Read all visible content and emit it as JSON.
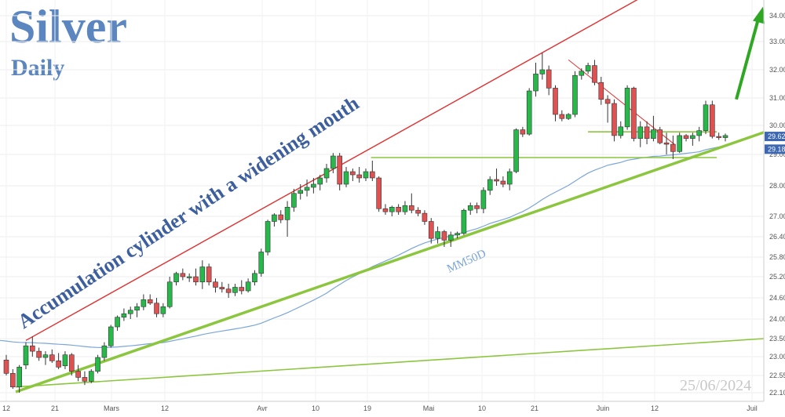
{
  "title": "Silver",
  "subtitle": "Daily",
  "date_stamp": "25/06/2024",
  "annotation": "Accumulation cylinder with a widening mouth",
  "ma_label": "MM50D",
  "colors": {
    "up": "#27b84a",
    "down": "#e05252",
    "channel_red": "#e03030",
    "support_green": "#8cc63f",
    "ma_line": "#7aa6d9",
    "title_blue": "#5b86c0",
    "price_badge": "#3d67b0"
  },
  "chart_data": {
    "type": "candlestick",
    "y_axis": {
      "side": "right",
      "ticks": [
        "34.00",
        "33.00",
        "32.00",
        "31.00",
        "30.00",
        "29.00",
        "28.00",
        "27.00",
        "26.40",
        "25.80",
        "25.20",
        "24.60",
        "24.00",
        "23.50",
        "23.00",
        "22.55",
        "22.10"
      ],
      "price_badges": [
        "29.62",
        "29.18"
      ]
    },
    "x_axis": {
      "ticks": [
        "12",
        "21",
        "Mars",
        "12",
        "Avr",
        "10",
        "19",
        "Mai",
        "10",
        "21",
        "Juin",
        "12",
        "Juil"
      ]
    },
    "candles": [
      [
        22.92,
        23.05,
        22.55,
        22.6
      ],
      [
        22.6,
        22.7,
        22.2,
        22.25
      ],
      [
        22.25,
        22.8,
        22.1,
        22.75
      ],
      [
        22.8,
        23.4,
        22.7,
        23.3
      ],
      [
        23.3,
        23.55,
        23.0,
        23.15
      ],
      [
        23.15,
        23.25,
        22.9,
        22.98
      ],
      [
        22.98,
        23.15,
        22.8,
        23.05
      ],
      [
        23.05,
        23.2,
        22.85,
        22.9
      ],
      [
        22.9,
        23.1,
        22.7,
        22.75
      ],
      [
        22.78,
        23.15,
        22.7,
        23.05
      ],
      [
        23.05,
        23.1,
        22.55,
        22.65
      ],
      [
        22.65,
        22.8,
        22.4,
        22.5
      ],
      [
        22.5,
        22.65,
        22.3,
        22.4
      ],
      [
        22.4,
        22.7,
        22.35,
        22.65
      ],
      [
        22.65,
        23.05,
        22.6,
        22.98
      ],
      [
        22.98,
        23.4,
        22.9,
        23.3
      ],
      [
        23.3,
        23.85,
        23.25,
        23.8
      ],
      [
        23.8,
        24.1,
        23.7,
        24.05
      ],
      [
        24.05,
        24.3,
        23.95,
        24.15
      ],
      [
        24.15,
        24.35,
        24.0,
        24.25
      ],
      [
        24.25,
        24.45,
        24.05,
        24.35
      ],
      [
        24.35,
        24.7,
        24.25,
        24.55
      ],
      [
        24.55,
        24.7,
        24.4,
        24.45
      ],
      [
        24.45,
        24.6,
        24.05,
        24.15
      ],
      [
        24.15,
        24.45,
        24.05,
        24.35
      ],
      [
        24.35,
        25.2,
        24.3,
        25.05
      ],
      [
        25.05,
        25.35,
        24.95,
        25.3
      ],
      [
        25.3,
        25.45,
        25.1,
        25.2
      ],
      [
        25.2,
        25.3,
        25.05,
        25.2
      ],
      [
        25.2,
        25.45,
        24.95,
        25.05
      ],
      [
        25.05,
        25.7,
        24.85,
        25.5
      ],
      [
        25.5,
        25.6,
        24.95,
        25.05
      ],
      [
        25.05,
        25.15,
        24.75,
        24.9
      ],
      [
        24.9,
        25.05,
        24.75,
        24.85
      ],
      [
        24.85,
        25.0,
        24.6,
        24.75
      ],
      [
        24.75,
        25.0,
        24.65,
        24.9
      ],
      [
        24.9,
        25.1,
        24.7,
        24.8
      ],
      [
        24.8,
        25.15,
        24.75,
        25.05
      ],
      [
        25.05,
        25.4,
        24.95,
        25.3
      ],
      [
        25.3,
        26.05,
        25.2,
        25.95
      ],
      [
        25.95,
        26.9,
        25.85,
        26.85
      ],
      [
        26.85,
        27.1,
        26.7,
        27.05
      ],
      [
        27.05,
        27.2,
        26.8,
        26.9
      ],
      [
        26.9,
        27.5,
        26.4,
        27.3
      ],
      [
        27.3,
        27.9,
        27.15,
        27.75
      ],
      [
        27.75,
        28.05,
        27.55,
        27.85
      ],
      [
        27.85,
        28.2,
        27.65,
        27.95
      ],
      [
        27.95,
        28.25,
        27.75,
        28.05
      ],
      [
        28.05,
        28.35,
        27.85,
        28.25
      ],
      [
        28.25,
        28.7,
        28.1,
        28.55
      ],
      [
        28.55,
        29.05,
        28.4,
        28.95
      ],
      [
        28.95,
        29.05,
        27.85,
        28.05
      ],
      [
        28.05,
        28.6,
        27.95,
        28.45
      ],
      [
        28.45,
        28.55,
        28.15,
        28.35
      ],
      [
        28.35,
        28.6,
        28.1,
        28.25
      ],
      [
        28.25,
        28.55,
        28.15,
        28.45
      ],
      [
        28.45,
        28.8,
        28.15,
        28.25
      ],
      [
        28.25,
        28.3,
        27.15,
        27.25
      ],
      [
        27.25,
        27.4,
        27.05,
        27.15
      ],
      [
        27.15,
        27.35,
        27.0,
        27.3
      ],
      [
        27.3,
        27.4,
        27.05,
        27.15
      ],
      [
        27.15,
        27.5,
        27.05,
        27.35
      ],
      [
        27.35,
        27.75,
        27.1,
        27.2
      ],
      [
        27.2,
        27.3,
        27.0,
        27.1
      ],
      [
        27.1,
        27.2,
        26.75,
        26.85
      ],
      [
        26.85,
        26.95,
        26.2,
        26.35
      ],
      [
        26.35,
        26.7,
        26.2,
        26.55
      ],
      [
        26.55,
        26.6,
        26.1,
        26.3
      ],
      [
        26.3,
        26.55,
        26.1,
        26.45
      ],
      [
        26.45,
        26.55,
        26.35,
        26.5
      ],
      [
        26.5,
        27.25,
        26.45,
        27.2
      ],
      [
        27.2,
        27.45,
        27.05,
        27.35
      ],
      [
        27.35,
        27.45,
        27.1,
        27.25
      ],
      [
        27.25,
        27.95,
        27.1,
        27.85
      ],
      [
        27.85,
        28.3,
        27.7,
        28.2
      ],
      [
        28.2,
        28.55,
        28.0,
        28.15
      ],
      [
        28.15,
        28.3,
        27.95,
        28.05
      ],
      [
        28.05,
        28.55,
        27.85,
        28.45
      ],
      [
        28.45,
        29.9,
        28.4,
        29.85
      ],
      [
        29.85,
        29.95,
        29.6,
        29.7
      ],
      [
        29.7,
        31.35,
        29.65,
        31.25
      ],
      [
        31.25,
        32.25,
        31.05,
        31.85
      ],
      [
        31.85,
        32.6,
        31.65,
        32.0
      ],
      [
        32.0,
        32.15,
        31.1,
        31.35
      ],
      [
        31.35,
        31.45,
        30.15,
        30.4
      ],
      [
        30.4,
        30.55,
        30.15,
        30.25
      ],
      [
        30.25,
        30.45,
        30.2,
        30.4
      ],
      [
        30.4,
        31.95,
        30.3,
        31.8
      ],
      [
        31.8,
        32.05,
        31.65,
        31.95
      ],
      [
        31.95,
        32.25,
        31.85,
        32.15
      ],
      [
        32.15,
        32.35,
        31.45,
        31.55
      ],
      [
        31.55,
        31.75,
        30.75,
        30.95
      ],
      [
        30.95,
        31.1,
        30.1,
        30.8
      ],
      [
        30.8,
        30.95,
        29.45,
        29.65
      ],
      [
        29.65,
        30.15,
        29.55,
        29.95
      ],
      [
        29.95,
        31.45,
        29.85,
        31.35
      ],
      [
        31.35,
        31.4,
        29.45,
        29.55
      ],
      [
        29.55,
        30.15,
        29.25,
        29.95
      ],
      [
        29.95,
        30.15,
        29.35,
        29.55
      ],
      [
        29.55,
        30.35,
        29.45,
        29.85
      ],
      [
        29.85,
        29.95,
        29.35,
        29.4
      ],
      [
        29.4,
        29.75,
        29.0,
        29.35
      ],
      [
        29.35,
        29.65,
        28.85,
        29.1
      ],
      [
        29.1,
        29.75,
        29.05,
        29.65
      ],
      [
        29.65,
        29.7,
        29.45,
        29.55
      ],
      [
        29.55,
        29.75,
        29.3,
        29.65
      ],
      [
        29.65,
        29.95,
        29.45,
        29.82
      ],
      [
        29.82,
        30.9,
        29.7,
        30.75
      ],
      [
        30.75,
        30.9,
        29.55,
        29.62
      ],
      [
        29.62,
        29.75,
        29.5,
        29.58
      ],
      [
        29.58,
        29.72,
        29.45,
        29.65
      ]
    ],
    "horizontal_levels": [
      29.78,
      28.9
    ],
    "ma50d_end": 29.18
  }
}
